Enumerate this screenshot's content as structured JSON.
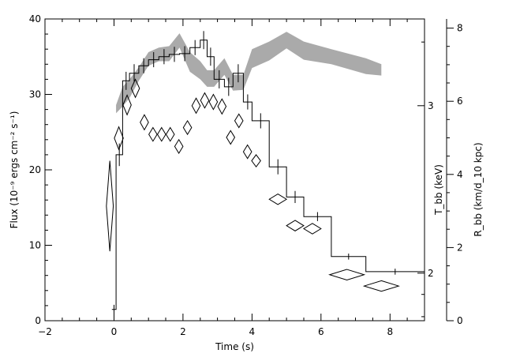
{
  "chart_data": {
    "type": "line",
    "title": "",
    "xlabel": "Time (s)",
    "ylabel_left": "Flux (10⁻⁹ ergs cm⁻² s⁻¹)",
    "ylabel_right_temp": "T_bb (keV)",
    "ylabel_right_radius": "R_bb (km/d_10 kpc)",
    "xlim": [
      -2,
      9
    ],
    "ylim_left": [
      0,
      40
    ],
    "ylim_right_radius": [
      0,
      8.25
    ],
    "x_ticks": [
      "−2",
      "0",
      "2",
      "4",
      "6",
      "8"
    ],
    "y_ticks_left": [
      "0",
      "10",
      "20",
      "30",
      "40"
    ],
    "y_ticks_radius": [
      "0",
      "2",
      "4",
      "6",
      "8"
    ],
    "y_ticks_temp": [
      "2",
      "3"
    ],
    "temperature_axis_scale": "log",
    "temperature_tick_values_in_flux_units": [
      6.3,
      28.5
    ],
    "grid": false,
    "series": [
      {
        "style": "step histogram with error bars",
        "color": "#000000",
        "points": [
          {
            "x0": -0.06,
            "x1": 0.06,
            "y": 1.5,
            "err": 0.6
          },
          {
            "x0": 0.06,
            "x1": 0.25,
            "y": 22.0,
            "err": 1.5
          },
          {
            "x0": 0.25,
            "x1": 0.45,
            "y": 31.8,
            "err": 1.2
          },
          {
            "x0": 0.45,
            "x1": 0.72,
            "y": 32.8,
            "err": 1.2
          },
          {
            "x0": 0.72,
            "x1": 1.0,
            "y": 33.8,
            "err": 1.0
          },
          {
            "x0": 1.0,
            "x1": 1.3,
            "y": 34.6,
            "err": 1.0
          },
          {
            "x0": 1.3,
            "x1": 1.6,
            "y": 35.0,
            "err": 1.0
          },
          {
            "x0": 1.6,
            "x1": 1.9,
            "y": 35.3,
            "err": 1.0
          },
          {
            "x0": 1.9,
            "x1": 2.2,
            "y": 35.4,
            "err": 1.0
          },
          {
            "x0": 2.2,
            "x1": 2.5,
            "y": 36.2,
            "err": 1.0
          },
          {
            "x0": 2.5,
            "x1": 2.7,
            "y": 37.2,
            "err": 1.2
          },
          {
            "x0": 2.7,
            "x1": 2.9,
            "y": 35.0,
            "err": 1.2
          },
          {
            "x0": 2.9,
            "x1": 3.2,
            "y": 32.0,
            "err": 1.2
          },
          {
            "x0": 3.2,
            "x1": 3.45,
            "y": 31.0,
            "err": 1.2
          },
          {
            "x0": 3.45,
            "x1": 3.75,
            "y": 32.8,
            "err": 1.2
          },
          {
            "x0": 3.75,
            "x1": 4.0,
            "y": 29.0,
            "err": 1.0
          },
          {
            "x0": 4.0,
            "x1": 4.5,
            "y": 26.5,
            "err": 1.0
          },
          {
            "x0": 4.5,
            "x1": 5.0,
            "y": 20.4,
            "err": 1.0
          },
          {
            "x0": 5.0,
            "x1": 5.5,
            "y": 16.4,
            "err": 0.8
          },
          {
            "x0": 5.5,
            "x1": 6.3,
            "y": 13.8,
            "err": 0.6
          },
          {
            "x0": 6.3,
            "x1": 7.3,
            "y": 8.5,
            "err": 0.4
          },
          {
            "x0": 7.3,
            "x1": 9.0,
            "y": 6.5,
            "err": 0.4
          }
        ]
      },
      {
        "style": "diamonds (x half-width, y half-height)",
        "color": "#000000",
        "points": [
          {
            "x": -0.12,
            "y": 15.2,
            "dx": 0.1,
            "dy": 6.0
          },
          {
            "x": 0.14,
            "y": 24.2,
            "dx": 0.13,
            "dy": 1.5
          },
          {
            "x": 0.38,
            "y": 28.6,
            "dx": 0.12,
            "dy": 1.3
          },
          {
            "x": 0.62,
            "y": 30.8,
            "dx": 0.12,
            "dy": 1.2
          },
          {
            "x": 0.88,
            "y": 26.3,
            "dx": 0.12,
            "dy": 1.0
          },
          {
            "x": 1.13,
            "y": 24.7,
            "dx": 0.12,
            "dy": 0.9
          },
          {
            "x": 1.38,
            "y": 24.7,
            "dx": 0.12,
            "dy": 0.9
          },
          {
            "x": 1.63,
            "y": 24.7,
            "dx": 0.12,
            "dy": 0.9
          },
          {
            "x": 1.88,
            "y": 23.1,
            "dx": 0.12,
            "dy": 0.9
          },
          {
            "x": 2.13,
            "y": 25.6,
            "dx": 0.12,
            "dy": 0.9
          },
          {
            "x": 2.38,
            "y": 28.5,
            "dx": 0.12,
            "dy": 1.0
          },
          {
            "x": 2.63,
            "y": 29.2,
            "dx": 0.12,
            "dy": 1.0
          },
          {
            "x": 2.88,
            "y": 29.0,
            "dx": 0.12,
            "dy": 1.0
          },
          {
            "x": 3.13,
            "y": 28.4,
            "dx": 0.12,
            "dy": 1.0
          },
          {
            "x": 3.38,
            "y": 24.3,
            "dx": 0.12,
            "dy": 0.9
          },
          {
            "x": 3.62,
            "y": 26.5,
            "dx": 0.12,
            "dy": 0.9
          },
          {
            "x": 3.87,
            "y": 22.4,
            "dx": 0.12,
            "dy": 0.9
          },
          {
            "x": 4.12,
            "y": 21.2,
            "dx": 0.13,
            "dy": 0.8
          },
          {
            "x": 4.75,
            "y": 16.1,
            "dx": 0.25,
            "dy": 0.7
          },
          {
            "x": 5.25,
            "y": 12.6,
            "dx": 0.25,
            "dy": 0.7
          },
          {
            "x": 5.75,
            "y": 12.2,
            "dx": 0.25,
            "dy": 0.7
          },
          {
            "x": 6.75,
            "y": 6.1,
            "dx": 0.5,
            "dy": 0.7
          },
          {
            "x": 7.75,
            "y": 4.6,
            "dx": 0.5,
            "dy": 0.7
          }
        ]
      },
      {
        "style": "shaded band",
        "color": "#aaaaaa",
        "x": [
          0.06,
          0.25,
          0.45,
          0.72,
          1.0,
          1.3,
          1.6,
          1.9,
          2.2,
          2.5,
          2.7,
          2.9,
          3.2,
          3.45,
          3.75,
          4.0,
          4.5,
          5.0,
          5.5,
          6.3,
          7.3,
          7.75
        ],
        "upper": [
          28.6,
          31.0,
          32.0,
          33.6,
          35.6,
          36.2,
          36.4,
          38.1,
          35.6,
          34.4,
          33.2,
          33.2,
          34.8,
          32.6,
          32.6,
          36.0,
          37.0,
          38.3,
          37.0,
          36.0,
          34.8,
          34.0
        ],
        "lower": [
          27.5,
          28.4,
          29.5,
          31.8,
          33.8,
          34.4,
          34.4,
          36.2,
          33.0,
          32.0,
          31.0,
          31.0,
          32.6,
          30.5,
          30.6,
          33.5,
          34.5,
          36.1,
          34.6,
          34.0,
          32.7,
          32.5
        ]
      }
    ]
  }
}
